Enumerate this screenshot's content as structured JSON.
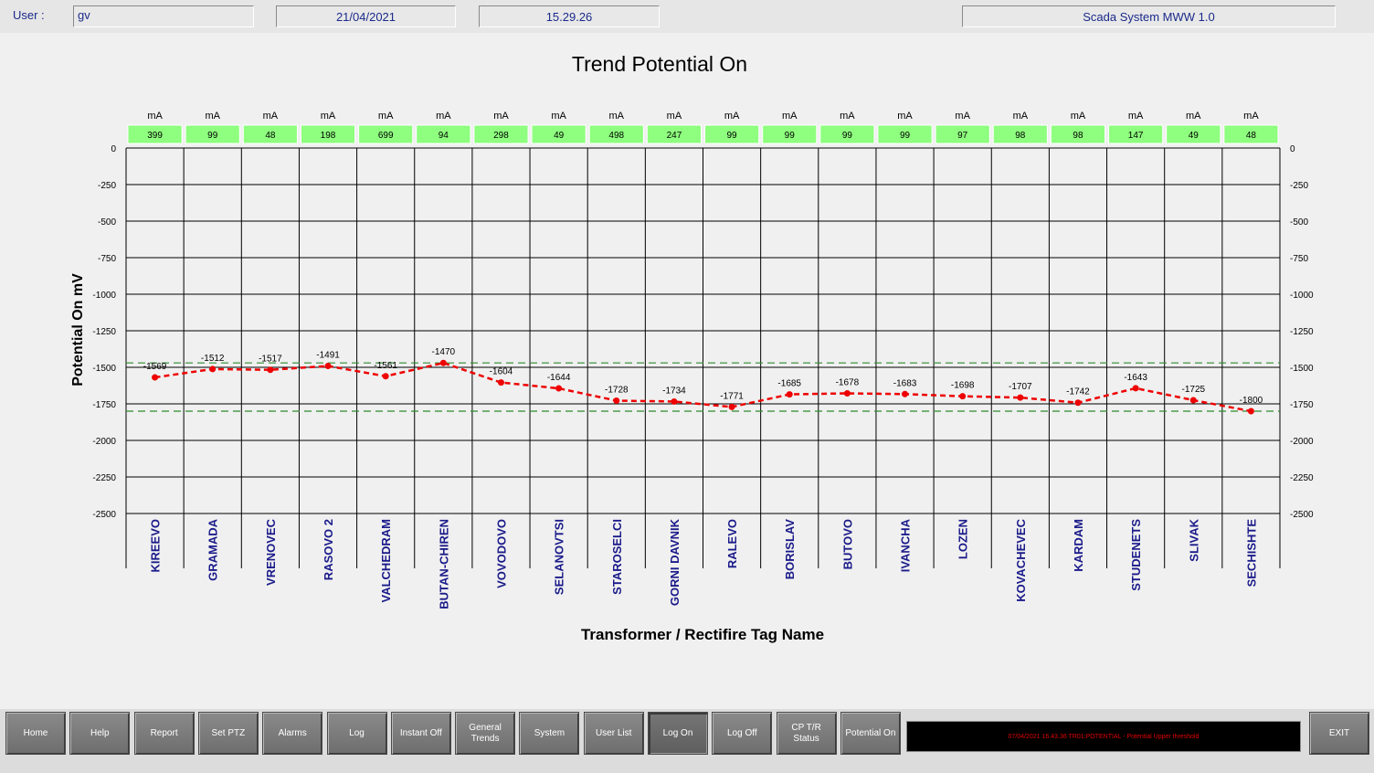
{
  "header": {
    "user_label": "User :",
    "user_value": "gv",
    "date": "21/04/2021",
    "time": "15.29.26",
    "system_name": "Scada System MWW 1.0"
  },
  "chart_data": {
    "type": "line",
    "title": "Trend Potential On",
    "xlabel": "Transformer / Rectifire Tag Name",
    "ylabel": "Potential On mV",
    "ylim": [
      -2500,
      0
    ],
    "y_ticks": [
      0,
      -250,
      -500,
      -750,
      -1000,
      -1250,
      -1500,
      -1750,
      -2000,
      -2250,
      -2500
    ],
    "grid": true,
    "categories": [
      "KIREEVO",
      "GRAMADA",
      "VRENOVEC",
      "RASOVO 2",
      "VALCHEDRAM",
      "BUTAN-CHIREN",
      "VOVODOVO",
      "SELANOVTSI",
      "STAROSELCI",
      "GORNI DAVNIK",
      "RALEVO",
      "BORISLAV",
      "BUTOVO",
      "IVANCHA",
      "LOZEN",
      "KOVACHEVEC",
      "KARDAM",
      "STUDENETS",
      "SLIVAK",
      "SECHISHTE"
    ],
    "series": [
      {
        "values": [
          -1569,
          -1512,
          -1517,
          -1491,
          -1561,
          -1470,
          -1604,
          -1644,
          -1728,
          -1734,
          -1771,
          -1685,
          -1678,
          -1683,
          -1698,
          -1707,
          -1742,
          -1643,
          -1725,
          -1800
        ],
        "color": "#ee0000"
      }
    ],
    "data_labels": [
      "-1569",
      "-1512",
      "-1517",
      "-1491",
      "-1561",
      "-1470",
      "-1604",
      "-1644",
      "-1728",
      "-1734",
      "-1771",
      "-1685",
      "-1678",
      "-1683",
      "-1698",
      "-1707",
      "-1742",
      "-1643",
      "-1725",
      "-1800"
    ],
    "thresholds": {
      "upper": -1470,
      "lower": -1800,
      "color": "#2e8b2e"
    },
    "current_unit": "mA",
    "currents": [
      "399",
      "99",
      "48",
      "198",
      "699",
      "94",
      "298",
      "49",
      "498",
      "247",
      "99",
      "99",
      "99",
      "99",
      "97",
      "98",
      "98",
      "147",
      "49",
      "48"
    ],
    "current_box_color": "#8eff7e"
  },
  "buttons": [
    {
      "name": "home-button",
      "label": "Home"
    },
    {
      "name": "help-button",
      "label": "Help"
    },
    {
      "name": "report-button",
      "label": "Report"
    },
    {
      "name": "set-ptz-button",
      "label": "Set PTZ"
    },
    {
      "name": "alarms-button",
      "label": "Alarms"
    },
    {
      "name": "log-button",
      "label": "Log"
    },
    {
      "name": "instant-off-button",
      "label": "Instant Off"
    },
    {
      "name": "general-trends-button",
      "label": "General\nTrends"
    },
    {
      "name": "system-button",
      "label": "System"
    },
    {
      "name": "user-list-button",
      "label": "User List"
    },
    {
      "name": "log-on-button",
      "label": "Log On",
      "active": true
    },
    {
      "name": "log-off-button",
      "label": "Log Off"
    },
    {
      "name": "cp-tr-status-button",
      "label": "CP T/R\nStatus"
    },
    {
      "name": "potential-on-button",
      "label": "Potential On"
    }
  ],
  "alarm_message": "07/04/2021 16.43.36 TR01:POTENTIAL - Potential Upper threshold",
  "exit_label": "EXIT"
}
